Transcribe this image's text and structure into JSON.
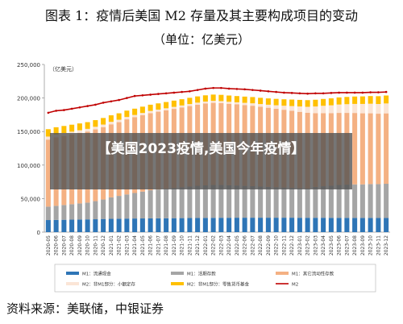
{
  "header": {
    "title": "图表 1：疫情后美国 M2 存量及其主要构成项目的变动",
    "subtitle": "（单位：亿美元）"
  },
  "overlay": {
    "headline": "【美国2023疫情,美国今年疫情】"
  },
  "footer": {
    "source": "资料来源：美联储，中银证券"
  },
  "chart_data": {
    "type": "bar",
    "stacked": true,
    "ylabel": "（亿美元）",
    "ylim": [
      0,
      250000
    ],
    "yticks": [
      "0",
      "50,000",
      "100,000",
      "150,000",
      "200,000",
      "250,000"
    ],
    "ytick_values": [
      0,
      50000,
      100000,
      150000,
      200000,
      250000
    ],
    "grid": false,
    "legend_position": "bottom",
    "categories": [
      "2020-05",
      "2020-06",
      "2020-07",
      "2020-08",
      "2020-09",
      "2020-10",
      "2020-11",
      "2020-12",
      "2021-01",
      "2021-02",
      "2021-03",
      "2021-04",
      "2021-05",
      "2021-06",
      "2021-07",
      "2021-08",
      "2021-09",
      "2021-10",
      "2021-11",
      "2021-12",
      "2022-01",
      "2022-02",
      "2022-03",
      "2022-04",
      "2022-05",
      "2022-06",
      "2022-07",
      "2022-08",
      "2022-09",
      "2022-10",
      "2022-11",
      "2022-12",
      "2023-01",
      "2023-02",
      "2023-03",
      "2023-04",
      "2023-05",
      "2023-06",
      "2023-07",
      "2023-08",
      "2023-09",
      "2023-10",
      "2023-11",
      "2023-12"
    ],
    "series": [
      {
        "name": "M1：流通现金",
        "color": "#2e75b6",
        "values": [
          18000,
          18200,
          18400,
          18600,
          18800,
          19000,
          19200,
          19600,
          19800,
          20000,
          20200,
          20300,
          20400,
          20500,
          20600,
          20700,
          20800,
          20900,
          21000,
          21100,
          21200,
          21300,
          21400,
          21400,
          21500,
          21500,
          21500,
          21500,
          21500,
          21500,
          21500,
          21500,
          21400,
          21400,
          21400,
          21400,
          21300,
          21300,
          21300,
          21200,
          21200,
          21200,
          21100,
          21100
        ]
      },
      {
        "name": "M1：活期存款",
        "color": "#a5a5a5",
        "values": [
          20000,
          21000,
          22000,
          23000,
          24000,
          25000,
          27000,
          29000,
          32000,
          34000,
          36000,
          38000,
          40000,
          42000,
          43000,
          44000,
          45000,
          46000,
          47000,
          48000,
          48500,
          49000,
          49000,
          48500,
          48000,
          47500,
          47000,
          46500,
          46000,
          45500,
          45000,
          44500,
          44000,
          43500,
          46000,
          47000,
          48000,
          49000,
          49500,
          50000,
          50000,
          50500,
          50500,
          51000
        ]
      },
      {
        "name": "M1：其它流动性存款",
        "color": "#f4b183",
        "values": [
          100000,
          102000,
          103000,
          104000,
          105000,
          106000,
          107000,
          108000,
          109000,
          110000,
          112000,
          113000,
          114000,
          115000,
          116000,
          117000,
          118000,
          119000,
          120000,
          121000,
          122000,
          122500,
          122000,
          121500,
          121000,
          120500,
          120000,
          119000,
          118000,
          117000,
          116000,
          115000,
          114000,
          113000,
          110000,
          109000,
          108000,
          107500,
          107000,
          106500,
          106000,
          105500,
          105000,
          105000
        ]
      },
      {
        "name": "M2：非M1部分：小额定存",
        "color": "#fbe5d6",
        "values": [
          4500,
          4400,
          4300,
          4200,
          4100,
          4000,
          3900,
          3800,
          3700,
          3600,
          3500,
          3400,
          3300,
          3200,
          3100,
          3000,
          3000,
          3000,
          3000,
          3000,
          3000,
          3000,
          3000,
          3000,
          3100,
          3300,
          3600,
          4000,
          4500,
          5200,
          6000,
          7000,
          8000,
          9000,
          10000,
          11000,
          11800,
          12500,
          13000,
          13500,
          14000,
          14300,
          14500,
          14800
        ]
      },
      {
        "name": "M2：非M1部分：零售货币基金",
        "color": "#ffc000",
        "values": [
          11000,
          10800,
          10600,
          10400,
          10200,
          10000,
          9900,
          9800,
          9700,
          9600,
          9500,
          9400,
          9400,
          9300,
          9300,
          9300,
          9300,
          9300,
          9300,
          9300,
          9300,
          9300,
          9300,
          9300,
          9300,
          9300,
          9300,
          9300,
          9400,
          9500,
          9600,
          9700,
          9800,
          9900,
          10000,
          10200,
          10400,
          10600,
          10800,
          11000,
          11200,
          11400,
          11600,
          11800
        ]
      }
    ],
    "line": {
      "name": "M2",
      "color": "#c00000",
      "values": [
        178000,
        181000,
        182000,
        184000,
        186000,
        188000,
        190000,
        193000,
        195000,
        197000,
        200000,
        203000,
        204000,
        205000,
        206000,
        207000,
        208000,
        209000,
        210000,
        212000,
        214000,
        215000,
        215000,
        214000,
        213500,
        213000,
        212000,
        211000,
        210000,
        209000,
        208000,
        207500,
        207000,
        206500,
        207000,
        207000,
        207500,
        208000,
        208000,
        208000,
        208000,
        208500,
        208500,
        209000
      ]
    }
  }
}
